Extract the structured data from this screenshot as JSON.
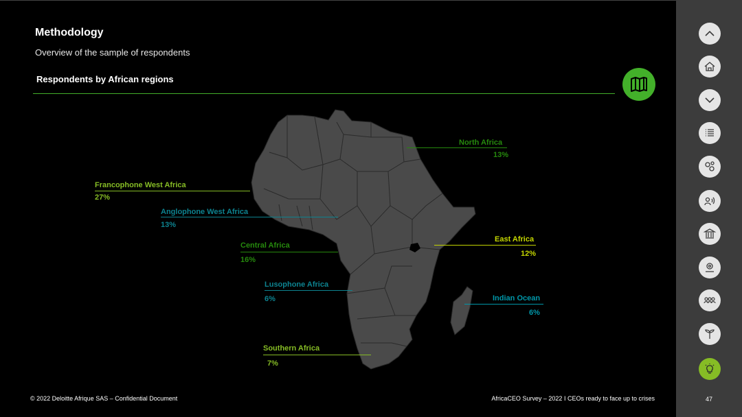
{
  "header": {
    "title": "Methodology",
    "subtitle": "Overview of the sample of respondents"
  },
  "section": {
    "title": "Respondents by African regions",
    "icon": "map-icon",
    "accent_color": "#43b02a"
  },
  "regions": [
    {
      "key": "north",
      "name": "North Africa",
      "pct": "13%",
      "color": "#26890d"
    },
    {
      "key": "francophone-west",
      "name": "Francophone West Africa",
      "pct": "27%",
      "color": "#86bc25"
    },
    {
      "key": "anglophone-west",
      "name": "Anglophone West Africa",
      "pct": "13%",
      "color": "#0d8390"
    },
    {
      "key": "central",
      "name": "Central Africa",
      "pct": "16%",
      "color": "#26890d"
    },
    {
      "key": "east",
      "name": "East Africa",
      "pct": "12%",
      "color": "#c4d600"
    },
    {
      "key": "lusophone",
      "name": "Lusophone Africa",
      "pct": "6%",
      "color": "#0d8390"
    },
    {
      "key": "indian-ocean",
      "name": "Indian Ocean",
      "pct": "6%",
      "color": "#0097a9"
    },
    {
      "key": "southern",
      "name": "Southern Africa",
      "pct": "7%",
      "color": "#86bc25"
    }
  ],
  "sidebar": {
    "items": [
      {
        "icon": "chevron-up-icon",
        "active": false
      },
      {
        "icon": "home-icon",
        "active": false
      },
      {
        "icon": "chevron-down-icon",
        "active": false
      },
      {
        "icon": "list-icon",
        "active": false
      },
      {
        "icon": "gears-icon",
        "active": false
      },
      {
        "icon": "speaking-person-icon",
        "active": false
      },
      {
        "icon": "institution-icon",
        "active": false
      },
      {
        "icon": "gear-hand-icon",
        "active": false
      },
      {
        "icon": "people-group-icon",
        "active": false
      },
      {
        "icon": "plant-icon",
        "active": false
      },
      {
        "icon": "lightbulb-icon",
        "active": true
      }
    ],
    "page_number": "47"
  },
  "footer": {
    "left": "© 2022 Deloitte Afrique SAS – Confidential Document",
    "right": "AfricaCEO Survey – 2022 I CEOs ready to face up to crises"
  }
}
